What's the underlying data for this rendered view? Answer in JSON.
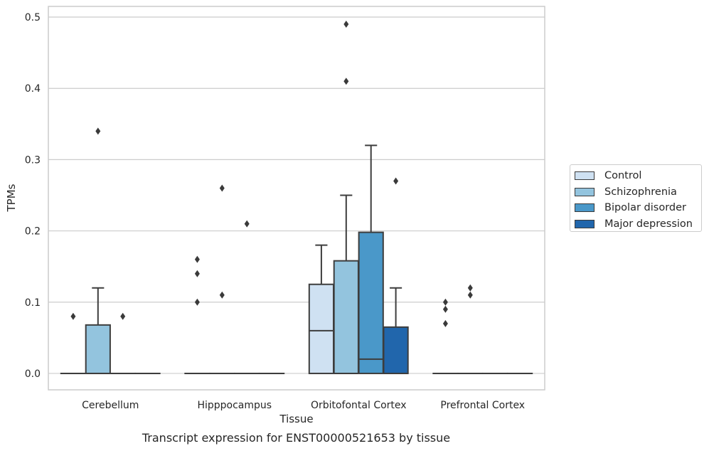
{
  "chart_data": {
    "type": "box",
    "ylabel": "TPMs",
    "xlabel": "Tissue",
    "caption": "Transcript expression for ENST00000521653 by tissue",
    "ylim": [
      -0.023,
      0.515
    ],
    "yticks": [
      "0.0",
      "0.1",
      "0.2",
      "0.3",
      "0.4",
      "0.5"
    ],
    "grid": true,
    "legend_position": "right",
    "categories": [
      "Cerebellum",
      "Hipppocampus",
      "Orbitofontal Cortex",
      "Prefrontal Cortex"
    ],
    "series": [
      {
        "name": "Control",
        "color": "#cfe1f2",
        "boxes": [
          {
            "q1": 0,
            "median": 0,
            "q3": 0,
            "whisker_low": 0,
            "whisker_high": 0,
            "outliers": [
              0.08
            ]
          },
          {
            "q1": 0,
            "median": 0,
            "q3": 0,
            "whisker_low": 0,
            "whisker_high": 0,
            "outliers": [
              0.1,
              0.14,
              0.16
            ]
          },
          {
            "q1": 0,
            "median": 0.06,
            "q3": 0.125,
            "whisker_low": 0,
            "whisker_high": 0.18,
            "outliers": []
          },
          {
            "q1": 0,
            "median": 0,
            "q3": 0,
            "whisker_low": 0,
            "whisker_high": 0,
            "outliers": [
              0.07,
              0.09,
              0.1
            ]
          }
        ]
      },
      {
        "name": "Schizophrenia",
        "color": "#93c4de",
        "boxes": [
          {
            "q1": 0,
            "median": 0,
            "q3": 0.068,
            "whisker_low": 0,
            "whisker_high": 0.12,
            "outliers": [
              0.34
            ]
          },
          {
            "q1": 0,
            "median": 0,
            "q3": 0,
            "whisker_low": 0,
            "whisker_high": 0,
            "outliers": [
              0.11,
              0.26
            ]
          },
          {
            "q1": 0,
            "median": 0,
            "q3": 0.158,
            "whisker_low": 0,
            "whisker_high": 0.25,
            "outliers": [
              0.41,
              0.49
            ]
          },
          {
            "q1": 0,
            "median": 0,
            "q3": 0,
            "whisker_low": 0,
            "whisker_high": 0,
            "outliers": [
              0.11,
              0.12
            ]
          }
        ]
      },
      {
        "name": "Bipolar disorder",
        "color": "#4a98c9",
        "boxes": [
          {
            "q1": 0,
            "median": 0,
            "q3": 0,
            "whisker_low": 0,
            "whisker_high": 0,
            "outliers": [
              0.08
            ]
          },
          {
            "q1": 0,
            "median": 0,
            "q3": 0,
            "whisker_low": 0,
            "whisker_high": 0,
            "outliers": [
              0.21
            ]
          },
          {
            "q1": 0,
            "median": 0.02,
            "q3": 0.198,
            "whisker_low": 0,
            "whisker_high": 0.32,
            "outliers": []
          },
          {
            "q1": 0,
            "median": 0,
            "q3": 0,
            "whisker_low": 0,
            "whisker_high": 0,
            "outliers": []
          }
        ]
      },
      {
        "name": "Major depression",
        "color": "#2166ac",
        "boxes": [
          {
            "q1": 0,
            "median": 0,
            "q3": 0,
            "whisker_low": 0,
            "whisker_high": 0,
            "outliers": []
          },
          {
            "q1": 0,
            "median": 0,
            "q3": 0,
            "whisker_low": 0,
            "whisker_high": 0,
            "outliers": []
          },
          {
            "q1": 0,
            "median": 0,
            "q3": 0.065,
            "whisker_low": 0,
            "whisker_high": 0.12,
            "outliers": [
              0.27
            ]
          },
          {
            "q1": 0,
            "median": 0,
            "q3": 0,
            "whisker_low": 0,
            "whisker_high": 0,
            "outliers": []
          }
        ]
      }
    ]
  }
}
